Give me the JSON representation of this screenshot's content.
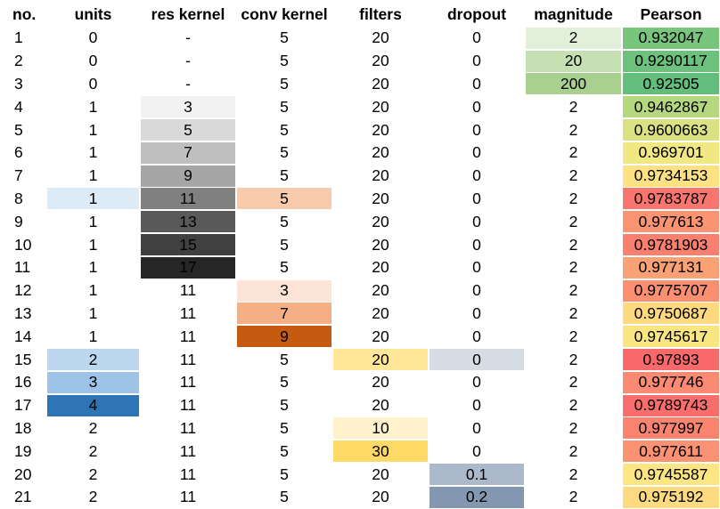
{
  "headers": [
    "no.",
    "units",
    "res kernel",
    "conv kernel",
    "filters",
    "dropout",
    "magnitude",
    "Pearson"
  ],
  "rows": [
    {
      "no": "1",
      "units": "0",
      "res": "-",
      "conv": "5",
      "filters": "20",
      "dropout": "0",
      "mag": "2",
      "pearson": "0.932047"
    },
    {
      "no": "2",
      "units": "0",
      "res": "-",
      "conv": "5",
      "filters": "20",
      "dropout": "0",
      "mag": "20",
      "pearson": "0.9290117"
    },
    {
      "no": "3",
      "units": "0",
      "res": "-",
      "conv": "5",
      "filters": "20",
      "dropout": "0",
      "mag": "200",
      "pearson": "0.92505"
    },
    {
      "no": "4",
      "units": "1",
      "res": "3",
      "conv": "5",
      "filters": "20",
      "dropout": "0",
      "mag": "2",
      "pearson": "0.9462867"
    },
    {
      "no": "5",
      "units": "1",
      "res": "5",
      "conv": "5",
      "filters": "20",
      "dropout": "0",
      "mag": "2",
      "pearson": "0.9600663"
    },
    {
      "no": "6",
      "units": "1",
      "res": "7",
      "conv": "5",
      "filters": "20",
      "dropout": "0",
      "mag": "2",
      "pearson": "0.969701"
    },
    {
      "no": "7",
      "units": "1",
      "res": "9",
      "conv": "5",
      "filters": "20",
      "dropout": "0",
      "mag": "2",
      "pearson": "0.9734153"
    },
    {
      "no": "8",
      "units": "1",
      "res": "11",
      "conv": "5",
      "filters": "20",
      "dropout": "0",
      "mag": "2",
      "pearson": "0.9783787"
    },
    {
      "no": "9",
      "units": "1",
      "res": "13",
      "conv": "5",
      "filters": "20",
      "dropout": "0",
      "mag": "2",
      "pearson": "0.977613"
    },
    {
      "no": "10",
      "units": "1",
      "res": "15",
      "conv": "5",
      "filters": "20",
      "dropout": "0",
      "mag": "2",
      "pearson": "0.9781903"
    },
    {
      "no": "11",
      "units": "1",
      "res": "17",
      "conv": "5",
      "filters": "20",
      "dropout": "0",
      "mag": "2",
      "pearson": "0.977131"
    },
    {
      "no": "12",
      "units": "1",
      "res": "11",
      "conv": "3",
      "filters": "20",
      "dropout": "0",
      "mag": "2",
      "pearson": "0.9775707"
    },
    {
      "no": "13",
      "units": "1",
      "res": "11",
      "conv": "7",
      "filters": "20",
      "dropout": "0",
      "mag": "2",
      "pearson": "0.9750687"
    },
    {
      "no": "14",
      "units": "1",
      "res": "11",
      "conv": "9",
      "filters": "20",
      "dropout": "0",
      "mag": "2",
      "pearson": "0.9745617"
    },
    {
      "no": "15",
      "units": "2",
      "res": "11",
      "conv": "5",
      "filters": "20",
      "dropout": "0",
      "mag": "2",
      "pearson": "0.97893"
    },
    {
      "no": "16",
      "units": "3",
      "res": "11",
      "conv": "5",
      "filters": "20",
      "dropout": "0",
      "mag": "2",
      "pearson": "0.977746"
    },
    {
      "no": "17",
      "units": "4",
      "res": "11",
      "conv": "5",
      "filters": "20",
      "dropout": "0",
      "mag": "2",
      "pearson": "0.9789743"
    },
    {
      "no": "18",
      "units": "2",
      "res": "11",
      "conv": "5",
      "filters": "10",
      "dropout": "0",
      "mag": "2",
      "pearson": "0.977997"
    },
    {
      "no": "19",
      "units": "2",
      "res": "11",
      "conv": "5",
      "filters": "30",
      "dropout": "0",
      "mag": "2",
      "pearson": "0.977611"
    },
    {
      "no": "20",
      "units": "2",
      "res": "11",
      "conv": "5",
      "filters": "20",
      "dropout": "0.1",
      "mag": "2",
      "pearson": "0.9745587"
    },
    {
      "no": "21",
      "units": "2",
      "res": "11",
      "conv": "5",
      "filters": "20",
      "dropout": "0.2",
      "mag": "2",
      "pearson": "0.975192"
    }
  ],
  "highlights": {
    "units": {
      "8": "#ddebf7",
      "15": "#bdd7ee",
      "16": "#9dc3e6",
      "17": "#2e75b6"
    },
    "res": {
      "4": "#f2f2f2",
      "5": "#d9d9d9",
      "6": "#bfbfbf",
      "7": "#a6a6a6",
      "8": "#808080",
      "9": "#595959",
      "10": "#404040",
      "11": "#262626"
    },
    "conv": {
      "8": "#f8cbad",
      "12": "#fce4d6",
      "13": "#f4b084",
      "14": "#c55a11"
    },
    "filters": {
      "15": "#ffe699",
      "18": "#fff2cc",
      "19": "#ffd966"
    },
    "dropout": {
      "15": "#d6dce4",
      "20": "#acb9ca",
      "21": "#8497b0"
    },
    "mag": {
      "1": "#e2efda",
      "2": "#c6e0b4",
      "3": "#a9d08e"
    },
    "pearson": {
      "1": "#79c57d",
      "2": "#6cc17c",
      "3": "#63be7b",
      "4": "#b5d87f",
      "5": "#d9e182",
      "6": "#f2e883",
      "7": "#fce282",
      "8": "#f8766d",
      "9": "#fa9473",
      "10": "#f9806f",
      "11": "#fba176",
      "12": "#fa8f72",
      "13": "#fed980",
      "14": "#fae583",
      "15": "#f8696b",
      "16": "#fa8a71",
      "17": "#f86e6c",
      "18": "#fa8470",
      "19": "#fa9273",
      "20": "#fbe683",
      "21": "#fedb81"
    }
  }
}
